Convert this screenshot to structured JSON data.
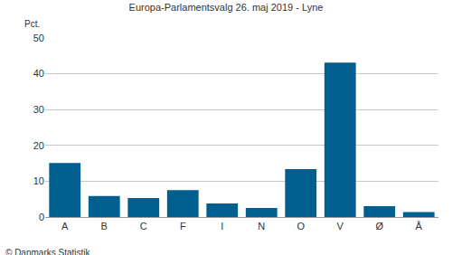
{
  "chart_data": {
    "type": "bar",
    "title": "Europa-Parlamentsvalg 26. maj 2019 - Lyne",
    "ylabel": "Pct.",
    "annotations": [
      "© Danmarks Statistik"
    ],
    "categories": [
      "A",
      "B",
      "C",
      "F",
      "I",
      "N",
      "O",
      "V",
      "Ø",
      "Å"
    ],
    "values": [
      15.1,
      5.9,
      5.3,
      7.5,
      3.8,
      2.5,
      13.4,
      43.1,
      3.0,
      1.4
    ],
    "color": "#005f8f",
    "ylim": [
      0,
      50
    ],
    "yticks": [
      0,
      10,
      20,
      30,
      40,
      50
    ],
    "grid": true
  }
}
